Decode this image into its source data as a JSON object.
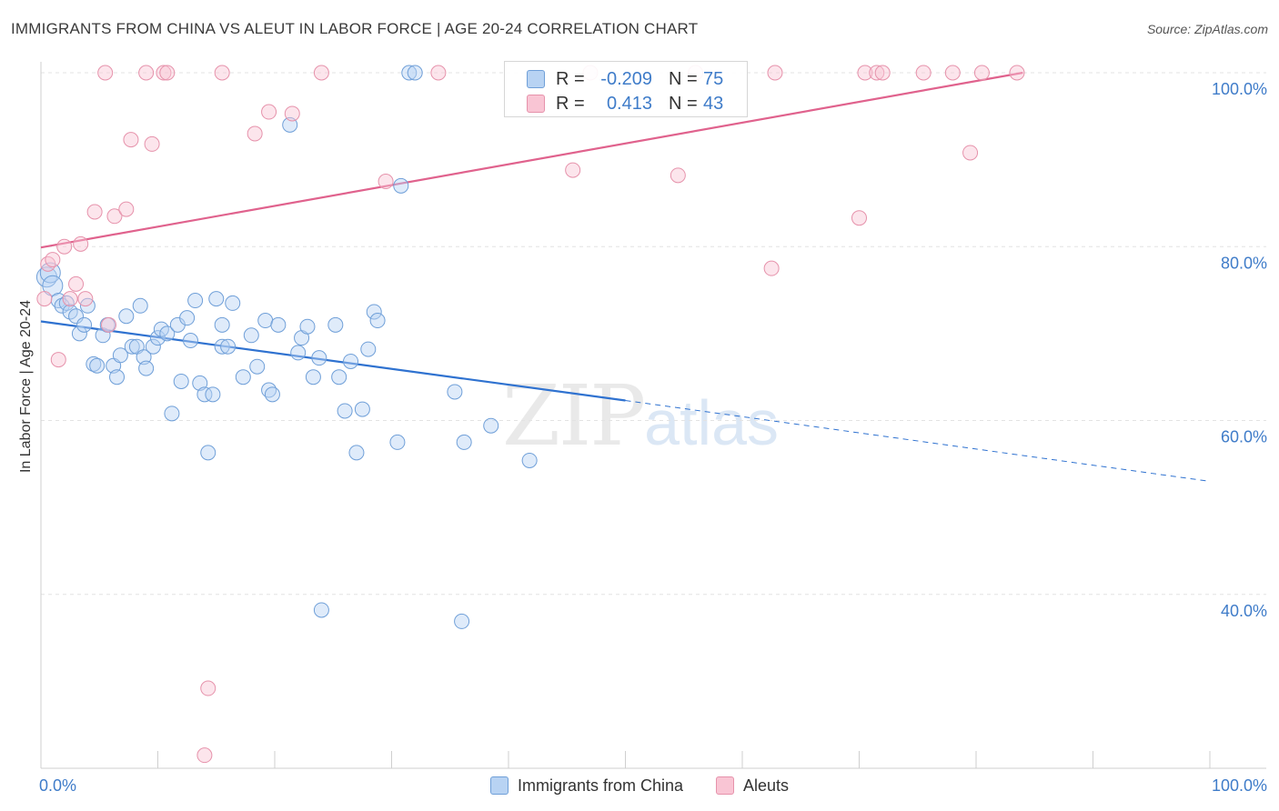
{
  "title": "IMMIGRANTS FROM CHINA VS ALEUT IN LABOR FORCE | AGE 20-24 CORRELATION CHART",
  "source": "Source: ZipAtlas.com",
  "watermark": {
    "zip": "ZIP",
    "atlas": "atlas"
  },
  "legend": {
    "r_label": "R =",
    "n_label": "N =",
    "series": [
      {
        "name": "Immigrants from China",
        "r": "-0.209",
        "n": "75",
        "color": "#6f9fd8"
      },
      {
        "name": "Aleuts",
        "r": "0.413",
        "n": "43",
        "color": "#e692ab"
      }
    ]
  },
  "chart_data": {
    "type": "scatter",
    "ylabel": "In Labor Force | Age 20-24",
    "xlim": [
      0,
      100
    ],
    "ylim": [
      20,
      100
    ],
    "x_tick_labels": [
      "0.0%",
      "100.0%"
    ],
    "y_tick_labels": [
      "40.0%",
      "60.0%",
      "80.0%",
      "100.0%"
    ],
    "y_ticks": [
      40,
      60,
      80,
      100
    ],
    "grid": true,
    "series": [
      {
        "name": "Immigrants from China",
        "color": "#6f9fd8",
        "trend": {
          "x0": 0,
          "y0": 71.4,
          "x1": 50,
          "y1": 62.3,
          "dashed_to_x": 100,
          "dashed_to_y": 53.0,
          "color": "#2f72d0"
        },
        "points": [
          [
            0.5,
            76.5
          ],
          [
            0.8,
            77.0
          ],
          [
            1.0,
            75.5
          ],
          [
            1.5,
            73.8
          ],
          [
            1.8,
            73.2
          ],
          [
            2.2,
            73.5
          ],
          [
            2.5,
            72.5
          ],
          [
            3.0,
            72.0
          ],
          [
            3.3,
            70.0
          ],
          [
            3.7,
            71.0
          ],
          [
            4.0,
            73.2
          ],
          [
            4.5,
            66.5
          ],
          [
            4.8,
            66.3
          ],
          [
            5.3,
            69.8
          ],
          [
            5.7,
            71.0
          ],
          [
            6.2,
            66.3
          ],
          [
            6.5,
            65.0
          ],
          [
            6.8,
            67.5
          ],
          [
            7.3,
            72.0
          ],
          [
            7.8,
            68.5
          ],
          [
            8.2,
            68.5
          ],
          [
            8.5,
            73.2
          ],
          [
            8.8,
            67.3
          ],
          [
            9.0,
            66.0
          ],
          [
            9.6,
            68.5
          ],
          [
            10.0,
            69.5
          ],
          [
            10.3,
            70.5
          ],
          [
            10.8,
            70.0
          ],
          [
            11.2,
            60.8
          ],
          [
            11.7,
            71.0
          ],
          [
            12.0,
            64.5
          ],
          [
            12.5,
            71.8
          ],
          [
            12.8,
            69.2
          ],
          [
            13.2,
            73.8
          ],
          [
            13.6,
            64.3
          ],
          [
            14.0,
            63.0
          ],
          [
            14.3,
            56.3
          ],
          [
            14.7,
            63.0
          ],
          [
            15.0,
            74.0
          ],
          [
            15.5,
            71.0
          ],
          [
            15.5,
            68.5
          ],
          [
            16.0,
            68.5
          ],
          [
            16.4,
            73.5
          ],
          [
            17.3,
            65.0
          ],
          [
            18.0,
            69.8
          ],
          [
            18.5,
            66.2
          ],
          [
            19.2,
            71.5
          ],
          [
            19.5,
            63.5
          ],
          [
            19.8,
            63.0
          ],
          [
            20.3,
            71.0
          ],
          [
            21.3,
            94.0
          ],
          [
            22.0,
            67.8
          ],
          [
            22.3,
            69.5
          ],
          [
            22.8,
            70.8
          ],
          [
            23.3,
            65.0
          ],
          [
            23.8,
            67.2
          ],
          [
            25.2,
            71.0
          ],
          [
            25.5,
            65.0
          ],
          [
            26.0,
            61.1
          ],
          [
            26.5,
            66.8
          ],
          [
            27.0,
            56.3
          ],
          [
            27.5,
            61.3
          ],
          [
            28.0,
            68.2
          ],
          [
            28.5,
            72.5
          ],
          [
            28.8,
            71.5
          ],
          [
            30.5,
            57.5
          ],
          [
            31.5,
            100.0
          ],
          [
            32.0,
            100.0
          ],
          [
            30.8,
            87.0
          ],
          [
            35.4,
            63.3
          ],
          [
            36.2,
            57.5
          ],
          [
            38.5,
            59.4
          ],
          [
            41.8,
            55.4
          ],
          [
            24.0,
            38.2
          ],
          [
            36.0,
            36.9
          ]
        ]
      },
      {
        "name": "Aleuts",
        "color": "#e692ab",
        "trend": {
          "x0": 0,
          "y0": 79.9,
          "x1": 84,
          "y1": 100.0,
          "color": "#e0628d"
        },
        "points": [
          [
            0.3,
            74.0
          ],
          [
            0.6,
            78.0
          ],
          [
            1.0,
            78.5
          ],
          [
            1.5,
            67.0
          ],
          [
            2.0,
            80.0
          ],
          [
            2.5,
            74.0
          ],
          [
            3.0,
            75.7
          ],
          [
            3.4,
            80.3
          ],
          [
            3.8,
            74.0
          ],
          [
            4.6,
            84.0
          ],
          [
            5.5,
            100.0
          ],
          [
            5.8,
            71.0
          ],
          [
            6.3,
            83.5
          ],
          [
            7.3,
            84.3
          ],
          [
            7.7,
            92.3
          ],
          [
            9.0,
            100.0
          ],
          [
            9.5,
            91.8
          ],
          [
            10.5,
            100.0
          ],
          [
            10.8,
            100.0
          ],
          [
            14.3,
            29.2
          ],
          [
            14.0,
            21.5
          ],
          [
            15.5,
            100.0
          ],
          [
            18.3,
            93.0
          ],
          [
            19.5,
            95.5
          ],
          [
            21.5,
            95.3
          ],
          [
            24.0,
            100.0
          ],
          [
            29.5,
            87.5
          ],
          [
            34.0,
            100.0
          ],
          [
            45.5,
            88.8
          ],
          [
            47.0,
            100.0
          ],
          [
            54.5,
            88.2
          ],
          [
            56.0,
            100.0
          ],
          [
            62.5,
            77.5
          ],
          [
            62.8,
            100.0
          ],
          [
            70.0,
            83.3
          ],
          [
            70.5,
            100.0
          ],
          [
            71.5,
            100.0
          ],
          [
            72.0,
            100.0
          ],
          [
            75.5,
            100.0
          ],
          [
            78.0,
            100.0
          ],
          [
            79.5,
            90.8
          ],
          [
            80.5,
            100.0
          ],
          [
            83.5,
            100.0
          ]
        ]
      }
    ]
  }
}
